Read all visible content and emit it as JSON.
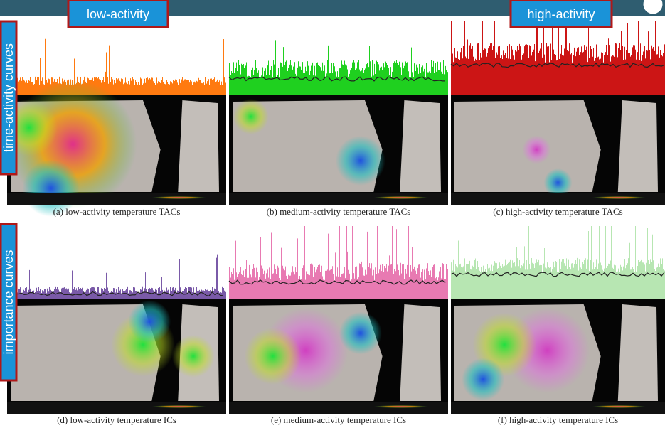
{
  "labels": {
    "low": "low-activity",
    "high": "high-activity"
  },
  "row_labels": [
    "time-activity curves",
    "importance curves"
  ],
  "panels": [
    {
      "caption": "(a) low-activity temperature TACs"
    },
    {
      "caption": "(b) medium-activity temperature TACs"
    },
    {
      "caption": "(c) high-activity temperature TACs"
    },
    {
      "caption": "(d) low-activity temperature ICs"
    },
    {
      "caption": "(e) medium-activity temperature ICs"
    },
    {
      "caption": "(f) high-activity temperature ICs"
    }
  ]
}
